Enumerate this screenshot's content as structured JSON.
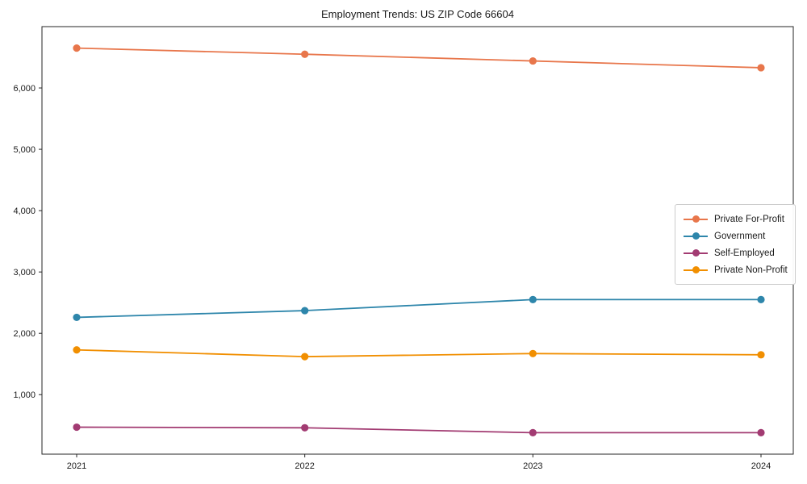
{
  "chart_data": {
    "type": "line",
    "title": "Employment Trends: US ZIP Code 66604",
    "xlabel": "",
    "ylabel": "",
    "categories": [
      "2021",
      "2022",
      "2023",
      "2024"
    ],
    "x_tick_labels": [
      "2021",
      "2022",
      "2023",
      "2024"
    ],
    "y_ticks": [
      1000,
      2000,
      3000,
      4000,
      5000,
      6000
    ],
    "y_tick_labels": [
      "1,000",
      "2,000",
      "3,000",
      "4,000",
      "5,000",
      "6,000"
    ],
    "ylim": [
      30,
      7000
    ],
    "grid": false,
    "marker": "circle",
    "legend_position": "center-right",
    "axis_color": "#262626",
    "text_color": "#1a1a1a",
    "series": [
      {
        "name": "Private For-Profit",
        "color": "#E8764B",
        "values": [
          6650,
          6550,
          6440,
          6330
        ]
      },
      {
        "name": "Government",
        "color": "#2E86AB",
        "values": [
          2260,
          2370,
          2550,
          2550
        ]
      },
      {
        "name": "Self-Employed",
        "color": "#A23B72",
        "values": [
          470,
          460,
          380,
          380
        ]
      },
      {
        "name": "Private Non-Profit",
        "color": "#F18F01",
        "values": [
          1730,
          1620,
          1670,
          1650
        ]
      }
    ]
  }
}
